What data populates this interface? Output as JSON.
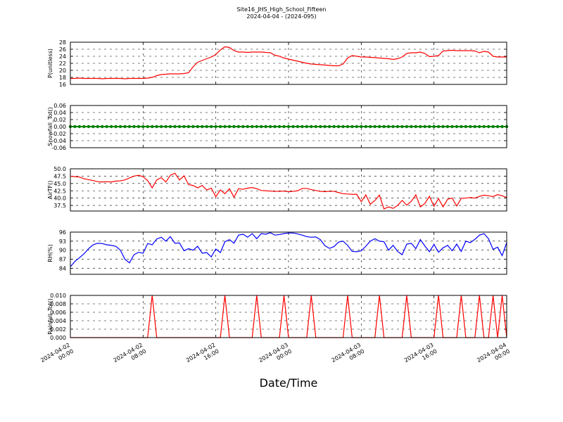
{
  "chart_data": {
    "type": "line",
    "title": "Site16_JHS_High_School_Fifteen",
    "subtitle": "2024-04-04 - (2024-095)",
    "xlabel": "Date/Time",
    "x": [
      "2024-04-02 00:00",
      "2024-04-02 00:30",
      "2024-04-02 01:00",
      "2024-04-02 01:30",
      "2024-04-02 02:00",
      "2024-04-02 02:30",
      "2024-04-02 03:00",
      "2024-04-02 03:30",
      "2024-04-02 04:00",
      "2024-04-02 04:30",
      "2024-04-02 05:00",
      "2024-04-02 05:30",
      "2024-04-02 06:00",
      "2024-04-02 06:30",
      "2024-04-02 07:00",
      "2024-04-02 07:30",
      "2024-04-02 08:00",
      "2024-04-02 08:30",
      "2024-04-02 09:00",
      "2024-04-02 09:30",
      "2024-04-02 10:00",
      "2024-04-02 10:30",
      "2024-04-02 11:00",
      "2024-04-02 11:30",
      "2024-04-02 12:00",
      "2024-04-02 12:30",
      "2024-04-02 13:00",
      "2024-04-02 13:30",
      "2024-04-02 14:00",
      "2024-04-02 14:30",
      "2024-04-02 15:00",
      "2024-04-02 15:30",
      "2024-04-02 16:00",
      "2024-04-02 16:30",
      "2024-04-02 17:00",
      "2024-04-02 17:30",
      "2024-04-02 18:00",
      "2024-04-02 18:30",
      "2024-04-02 19:00",
      "2024-04-02 19:30",
      "2024-04-02 20:00",
      "2024-04-02 20:30",
      "2024-04-02 21:00",
      "2024-04-02 21:30",
      "2024-04-02 22:00",
      "2024-04-02 22:30",
      "2024-04-02 23:00",
      "2024-04-02 23:30",
      "2024-04-03 00:00",
      "2024-04-03 00:30",
      "2024-04-03 01:00",
      "2024-04-03 01:30",
      "2024-04-03 02:00",
      "2024-04-03 02:30",
      "2024-04-03 03:00",
      "2024-04-03 03:30",
      "2024-04-03 04:00",
      "2024-04-03 04:30",
      "2024-04-03 05:00",
      "2024-04-03 05:30",
      "2024-04-03 06:00",
      "2024-04-03 06:30",
      "2024-04-03 07:00",
      "2024-04-03 07:30",
      "2024-04-03 08:00",
      "2024-04-03 08:30",
      "2024-04-03 09:00",
      "2024-04-03 09:30",
      "2024-04-03 10:00",
      "2024-04-03 10:30",
      "2024-04-03 11:00",
      "2024-04-03 11:30",
      "2024-04-03 12:00",
      "2024-04-03 12:30",
      "2024-04-03 13:00",
      "2024-04-03 13:30",
      "2024-04-03 14:00",
      "2024-04-03 14:30",
      "2024-04-03 15:00",
      "2024-04-03 15:30",
      "2024-04-03 16:00",
      "2024-04-03 16:30",
      "2024-04-03 17:00",
      "2024-04-03 17:30",
      "2024-04-03 18:00",
      "2024-04-03 18:30",
      "2024-04-03 19:00",
      "2024-04-03 19:30",
      "2024-04-03 20:00",
      "2024-04-03 20:30",
      "2024-04-03 21:00",
      "2024-04-03 21:30",
      "2024-04-03 22:00",
      "2024-04-03 22:30",
      "2024-04-03 23:00",
      "2024-04-03 23:30",
      "2024-04-04 00:00"
    ],
    "xticks": [
      "2024-04-02 00:00",
      "2024-04-02 08:00",
      "2024-04-02 16:00",
      "2024-04-03 00:00",
      "2024-04-03 08:00",
      "2024-04-03 16:00",
      "2024-04-04 00:00"
    ],
    "grid": true,
    "panels": [
      {
        "ylabel": "P(unitless)",
        "color": "#ff0000",
        "ylim": [
          16,
          28
        ],
        "yticks": [
          16,
          18,
          20,
          22,
          24,
          26,
          28
        ],
        "values": [
          17.7,
          17.7,
          17.8,
          17.7,
          17.7,
          17.7,
          17.7,
          17.6,
          17.7,
          17.7,
          17.7,
          17.7,
          17.6,
          17.7,
          17.7,
          17.7,
          17.7,
          17.8,
          18.0,
          18.5,
          18.8,
          18.9,
          19.0,
          19.0,
          19.0,
          19.1,
          19.3,
          21.0,
          22.3,
          22.8,
          23.3,
          23.8,
          24.5,
          25.8,
          26.7,
          26.5,
          25.6,
          25.2,
          25.2,
          25.1,
          25.2,
          25.2,
          25.2,
          25.1,
          25.0,
          24.3,
          24.0,
          23.5,
          23.2,
          22.9,
          22.6,
          22.3,
          22.0,
          21.8,
          21.7,
          21.6,
          21.5,
          21.4,
          21.3,
          21.3,
          21.8,
          23.5,
          24.2,
          24.0,
          23.8,
          23.8,
          23.7,
          23.6,
          23.5,
          23.4,
          23.3,
          23.1,
          23.3,
          23.8,
          24.8,
          25.0,
          25.0,
          25.2,
          24.8,
          23.9,
          24.0,
          24.2,
          25.5,
          25.6,
          25.7,
          25.6,
          25.6,
          25.6,
          25.6,
          25.5,
          25.0,
          25.4,
          25.2,
          24.0,
          23.8,
          23.8,
          23.8
        ]
      },
      {
        "ylabel": "Snowfall_Tot()",
        "color": "#008000",
        "markers": true,
        "ylim": [
          -0.06,
          0.06
        ],
        "yticks": [
          -0.06,
          -0.04,
          -0.02,
          {
            "value": 0,
            "label": "0.00"
          },
          0.02,
          0.04,
          0.06
        ],
        "values": [
          0,
          0,
          0,
          0,
          0,
          0,
          0,
          0,
          0,
          0,
          0,
          0,
          0,
          0,
          0,
          0,
          0,
          0,
          0,
          0,
          0,
          0,
          0,
          0,
          0,
          0,
          0,
          0,
          0,
          0,
          0,
          0,
          0,
          0,
          0,
          0,
          0,
          0,
          0,
          0,
          0,
          0,
          0,
          0,
          0,
          0,
          0,
          0,
          0,
          0,
          0,
          0,
          0,
          0,
          0,
          0,
          0,
          0,
          0,
          0,
          0,
          0,
          0,
          0,
          0,
          0,
          0,
          0,
          0,
          0,
          0,
          0,
          0,
          0,
          0,
          0,
          0,
          0,
          0,
          0,
          0,
          0,
          0,
          0,
          0,
          0,
          0,
          0,
          0,
          0,
          0,
          0,
          0,
          0,
          0,
          0,
          0
        ]
      },
      {
        "ylabel": "AirTF()",
        "color": "#ff0000",
        "ylim": [
          35.6,
          50
        ],
        "yticks": [
          37.5,
          {
            "value": 40,
            "label": "40.0"
          },
          42.5,
          {
            "value": 45,
            "label": "45.0"
          },
          47.5,
          {
            "value": 50,
            "label": "50.0"
          }
        ],
        "values": [
          47.5,
          47.3,
          47.2,
          46.6,
          46.3,
          46.0,
          45.6,
          45.5,
          45.6,
          45.5,
          45.8,
          45.9,
          46.2,
          46.9,
          47.5,
          47.8,
          47.3,
          46.0,
          43.5,
          46.2,
          47.0,
          45.5,
          47.8,
          48.5,
          46.2,
          47.6,
          44.6,
          44.3,
          43.5,
          44.3,
          42.8,
          43.4,
          40.5,
          42.8,
          41.5,
          43.2,
          40.3,
          43.2,
          43.0,
          43.4,
          43.6,
          43.2,
          42.6,
          42.5,
          42.4,
          42.3,
          42.3,
          42.4,
          42.2,
          42.3,
          42.5,
          43.3,
          43.3,
          42.9,
          42.6,
          42.3,
          42.2,
          42.3,
          42.3,
          41.9,
          41.5,
          41.4,
          41.3,
          41.3,
          38.8,
          41.1,
          37.9,
          39.2,
          41.0,
          36.3,
          37.0,
          36.5,
          37.5,
          39.2,
          37.6,
          38.9,
          41.1,
          37.0,
          38.2,
          40.6,
          37.2,
          39.8,
          37.0,
          39.6,
          40.0,
          37.3,
          39.9,
          40.0,
          40.2,
          40.0,
          40.6,
          41.0,
          40.8,
          40.5,
          41.2,
          40.8,
          40.2
        ]
      },
      {
        "ylabel": "RH(%)",
        "color": "#0000ff",
        "ylim": [
          82,
          96
        ],
        "yticks": [
          84,
          87,
          90,
          93,
          96
        ],
        "values": [
          84.5,
          86.3,
          87.5,
          88.8,
          90.5,
          91.8,
          92.3,
          92.2,
          91.8,
          91.6,
          91.3,
          90.0,
          87.0,
          85.8,
          88.5,
          89.3,
          89.0,
          92.2,
          91.8,
          93.7,
          94.3,
          93.0,
          94.5,
          92.3,
          92.4,
          89.8,
          90.5,
          90.0,
          91.3,
          89.0,
          89.2,
          87.8,
          90.4,
          89.2,
          92.8,
          93.5,
          92.3,
          95.0,
          95.3,
          94.3,
          95.5,
          93.8,
          95.5,
          95.3,
          95.8,
          95.0,
          95.2,
          95.5,
          95.7,
          95.7,
          95.4,
          95.0,
          94.5,
          94.3,
          94.4,
          93.5,
          91.5,
          90.6,
          91.2,
          92.7,
          93.0,
          91.6,
          89.6,
          89.5,
          89.8,
          91.3,
          93.0,
          93.8,
          93.0,
          92.8,
          90.0,
          91.6,
          89.6,
          88.5,
          92.0,
          92.3,
          90.5,
          93.5,
          91.4,
          89.5,
          91.9,
          89.3,
          90.8,
          91.6,
          89.8,
          92.0,
          89.6,
          93.0,
          92.5,
          93.6,
          95.0,
          95.5,
          93.8,
          90.3,
          91.0,
          88.2,
          92.5
        ]
      },
      {
        "ylabel": "Rainfall_Tot()",
        "color": "#ff0000",
        "ylim": [
          0,
          0.01
        ],
        "yticks": [
          {
            "value": 0,
            "label": "0.000"
          },
          {
            "value": 0.002,
            "label": "0.002"
          },
          {
            "value": 0.004,
            "label": "0.004"
          },
          {
            "value": 0.006,
            "label": "0.006"
          },
          {
            "value": 0.008,
            "label": "0.008"
          },
          {
            "value": 0.01,
            "label": "0.010"
          }
        ],
        "values": [
          0,
          0,
          0,
          0,
          0,
          0,
          0,
          0,
          0,
          0,
          0,
          0,
          0,
          0,
          0,
          0,
          0,
          0,
          0.01,
          0,
          0,
          0,
          0,
          0,
          0,
          0,
          0,
          0,
          0,
          0,
          0,
          0,
          0,
          0,
          0.01,
          0,
          0,
          0,
          0,
          0,
          0,
          0.01,
          0,
          0,
          0,
          0,
          0,
          0.01,
          0,
          0,
          0,
          0,
          0,
          0.01,
          0,
          0,
          0,
          0,
          0,
          0,
          0,
          0.01,
          0,
          0,
          0,
          0,
          0,
          0,
          0.01,
          0,
          0,
          0,
          0,
          0,
          0.01,
          0,
          0,
          0,
          0,
          0,
          0,
          0.01,
          0,
          0,
          0,
          0,
          0.01,
          0,
          0,
          0,
          0.01,
          0,
          0,
          0.01,
          0,
          0.01,
          0
        ]
      }
    ]
  }
}
